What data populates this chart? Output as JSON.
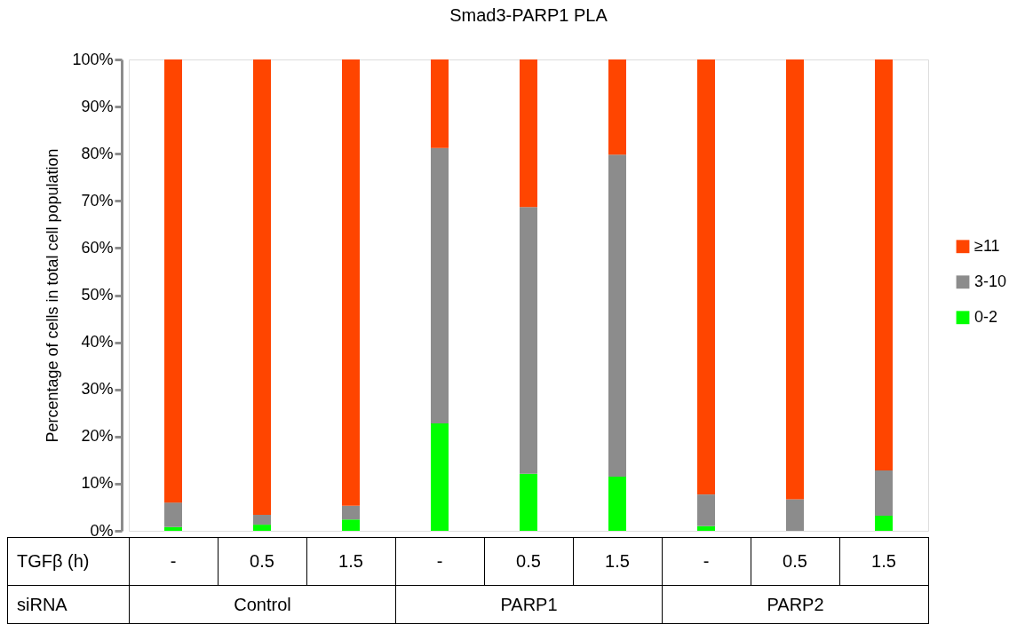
{
  "chart_data": {
    "type": "bar",
    "title": "Smad3-PARP1 PLA",
    "ylabel": "Percentage of cells in  total cell  population",
    "categories": [
      "-",
      "0.5",
      "1.5",
      "-",
      "0.5",
      "1.5",
      "-",
      "0.5",
      "1.5"
    ],
    "stacked": true,
    "ylim": [
      0,
      100
    ],
    "yticks": [
      {
        "value": 0,
        "label": "0%"
      },
      {
        "value": 10,
        "label": "10%"
      },
      {
        "value": 20,
        "label": "20%"
      },
      {
        "value": 30,
        "label": "30%"
      },
      {
        "value": 40,
        "label": "40%"
      },
      {
        "value": 50,
        "label": "50%"
      },
      {
        "value": 60,
        "label": "60%"
      },
      {
        "value": 70,
        "label": "70%"
      },
      {
        "value": 80,
        "label": "80%"
      },
      {
        "value": 90,
        "label": "90%"
      },
      {
        "value": 100,
        "label": "100%"
      }
    ],
    "grid": false,
    "legend": "right",
    "series": [
      {
        "name": "0-2",
        "color": "#00ff00",
        "values": [
          0.8,
          1.3,
          2.4,
          22.8,
          12.1,
          11.5,
          1.0,
          0,
          3.2
        ]
      },
      {
        "name": "3-10",
        "color": "#8c8c8c",
        "values": [
          5.2,
          2.1,
          2.9,
          58.4,
          56.6,
          68.3,
          6.7,
          6.7,
          9.6
        ]
      },
      {
        "name": "≥11",
        "color": "#ff4500",
        "values": [
          94.0,
          96.6,
          94.7,
          18.8,
          31.3,
          20.2,
          92.3,
          93.3,
          87.2
        ]
      }
    ],
    "annotations": [
      "TGFβ (h)",
      "siRNA",
      "Control",
      "PARP1",
      "PARP2"
    ]
  }
}
